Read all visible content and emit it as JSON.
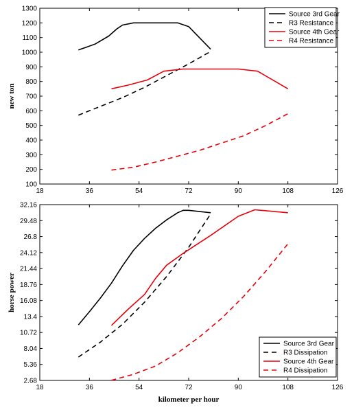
{
  "chart_data": [
    {
      "type": "line",
      "title": "",
      "xlabel": "",
      "ylabel": "new ton",
      "xlim": [
        18,
        126
      ],
      "ylim": [
        100,
        1300
      ],
      "xticks": [
        18,
        36,
        54,
        72,
        90,
        108,
        126
      ],
      "yticks": [
        100,
        200,
        300,
        400,
        500,
        600,
        700,
        800,
        900,
        1000,
        1100,
        1200,
        1300
      ],
      "legend_position": "top-right",
      "grid": false,
      "series": [
        {
          "name": "Source 3rd Gear",
          "color": "#000000",
          "dash": "solid",
          "x": [
            32,
            38,
            43,
            46,
            48,
            52,
            60,
            68,
            72,
            80
          ],
          "y": [
            1015,
            1055,
            1110,
            1160,
            1185,
            1200,
            1200,
            1200,
            1175,
            1020
          ]
        },
        {
          "name": "R3 Resistance",
          "color": "#000000",
          "dash": "dashed",
          "x": [
            32,
            40,
            48,
            56,
            64,
            72,
            80
          ],
          "y": [
            570,
            630,
            690,
            760,
            840,
            920,
            1005
          ]
        },
        {
          "name": "Source 4th Gear",
          "color": "#e8000b",
          "dash": "solid",
          "x": [
            44,
            50,
            57,
            63,
            70,
            80,
            90,
            97,
            108
          ],
          "y": [
            750,
            775,
            810,
            870,
            885,
            885,
            885,
            870,
            750
          ]
        },
        {
          "name": "R4 Resistance",
          "color": "#e8000b",
          "dash": "dashed",
          "x": [
            44,
            52,
            60,
            68,
            76,
            84,
            92,
            100,
            108
          ],
          "y": [
            195,
            215,
            250,
            290,
            330,
            380,
            430,
            500,
            580
          ]
        }
      ]
    },
    {
      "type": "line",
      "title": "",
      "xlabel": "kilometer per hour",
      "ylabel": "horse power",
      "xlim": [
        18,
        126
      ],
      "ylim": [
        2.68,
        32.16
      ],
      "xticks": [
        18,
        36,
        54,
        72,
        90,
        108,
        126
      ],
      "yticks": [
        "2.68",
        "5.36",
        "8.04",
        "10.72",
        "13.4",
        "16.08",
        "18.76",
        "21.44",
        "24.12",
        "26.8",
        "29.48",
        "32.16"
      ],
      "legend_position": "bottom-right",
      "grid": false,
      "series": [
        {
          "name": "Source 3rd Gear",
          "color": "#000000",
          "dash": "solid",
          "x": [
            32,
            36,
            40,
            44,
            48,
            52,
            56,
            60,
            64,
            68,
            70,
            72,
            80
          ],
          "y": [
            12.0,
            14.2,
            16.5,
            19.0,
            21.9,
            24.5,
            26.5,
            28.2,
            29.6,
            30.8,
            31.2,
            31.2,
            30.8
          ]
        },
        {
          "name": "R3 Dissipation",
          "color": "#000000",
          "dash": "dashed",
          "x": [
            32,
            40,
            48,
            56,
            64,
            72,
            80
          ],
          "y": [
            6.6,
            9.1,
            12.1,
            15.8,
            20.1,
            25.0,
            30.6
          ]
        },
        {
          "name": "Source 4th Gear",
          "color": "#e8000b",
          "dash": "solid",
          "x": [
            44,
            50,
            56,
            60,
            64,
            70,
            80,
            90,
            96,
            108
          ],
          "y": [
            11.9,
            14.6,
            17.1,
            19.8,
            22.0,
            24.0,
            27.0,
            30.2,
            31.3,
            30.8
          ]
        },
        {
          "name": "R4 Dissipation",
          "color": "#e8000b",
          "dash": "dashed",
          "x": [
            44,
            52,
            60,
            68,
            76,
            84,
            92,
            100,
            108
          ],
          "y": [
            2.7,
            3.7,
            5.1,
            7.3,
            10.0,
            13.1,
            16.8,
            21.0,
            25.6
          ]
        }
      ]
    }
  ]
}
